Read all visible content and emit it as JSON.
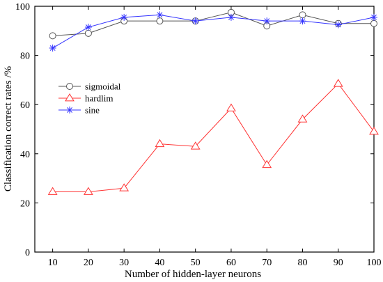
{
  "chart_data": {
    "type": "line",
    "title": "",
    "xlabel": "Number of hidden-layer neurons",
    "ylabel": "Classification correct rates /%",
    "x": [
      10,
      20,
      30,
      40,
      50,
      60,
      70,
      80,
      90,
      100
    ],
    "xlim": [
      5,
      100
    ],
    "ylim": [
      0,
      100
    ],
    "xticks": [
      10,
      20,
      30,
      40,
      50,
      60,
      70,
      80,
      90,
      100
    ],
    "yticks": [
      0,
      20,
      40,
      60,
      80,
      100
    ],
    "grid": false,
    "legend_position": "center-left",
    "series": [
      {
        "name": "sigmoidal",
        "marker": "circle",
        "color": "#555555",
        "values": [
          88,
          89,
          94,
          94,
          94,
          97.5,
          92,
          96.5,
          93,
          93
        ]
      },
      {
        "name": "hardlim",
        "marker": "triangle",
        "color": "#ff3333",
        "values": [
          24.5,
          24.5,
          26,
          44,
          43,
          58.5,
          35.5,
          54,
          68.5,
          49
        ]
      },
      {
        "name": "sine",
        "marker": "asterisk",
        "color": "#3333ff",
        "values": [
          83,
          91.5,
          95.5,
          96.5,
          94,
          95.5,
          94,
          94,
          92.5,
          95.5
        ]
      }
    ]
  }
}
